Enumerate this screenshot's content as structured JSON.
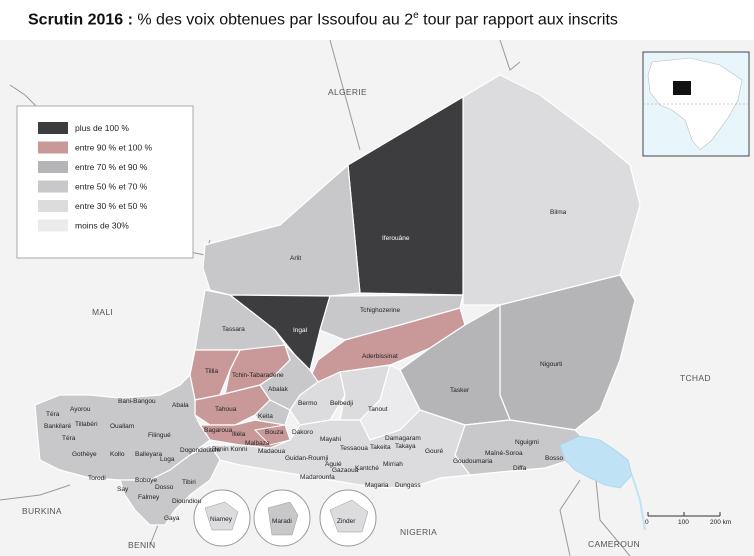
{
  "title": {
    "bold": "Scrutin 2016 :",
    "text": " % des voix obtenues par Issoufou au 2",
    "sup": "e",
    "rest": " tour par rapport aux inscrits"
  },
  "colors": {
    "c100": "#3d3d3f",
    "c90": "#c9999a",
    "c70": "#b5b5b7",
    "c50": "#c8c8ca",
    "c30": "#dcdcde",
    "c0": "#ebebed",
    "water": "#bfe3f5",
    "bg": "#f4f4f4"
  },
  "legend": [
    {
      "label": "plus de 100 %",
      "color": "#3d3d3f"
    },
    {
      "label": "entre 90 % et 100 %",
      "color": "#c9999a"
    },
    {
      "label": "entre 70 % et 90 %",
      "color": "#b5b5b7"
    },
    {
      "label": "entre 50 % et 70 %",
      "color": "#c8c8ca"
    },
    {
      "label": "entre 30 % et 50 %",
      "color": "#dcdcde"
    },
    {
      "label": "moins de 30%",
      "color": "#ebebed"
    }
  ],
  "countries": {
    "algeria": "ALGERIE",
    "mali": "MALI",
    "tchad": "TCHAD",
    "burkina": "BURKINA",
    "nigeria": "NIGERIA",
    "benin": "BENIN",
    "cameroun": "CAMEROUN"
  },
  "regions": {
    "iferouane": "Iferouâne",
    "bilma": "Bilma",
    "arlit": "Arlit",
    "tchighozerine": "Tchighozerine",
    "ingal": "Ingal",
    "tassara": "Tassara",
    "aderbissinat": "Aderbissinat",
    "ngourti": "Nigourti",
    "tillia": "Tillia",
    "tchin": "Tchin-Tabaradene",
    "abalak": "Abalak",
    "tasker": "Tasker",
    "tahoua": "Tahoua",
    "keita": "Keita",
    "bermo": "Bermo",
    "belbedji": "Belbedji",
    "tanout": "Tanout",
    "bani": "Bani-Bangou",
    "abala": "Abala",
    "tera": "Téra",
    "ayorou": "Ayorou",
    "bankilare": "Bankilaré",
    "tillaberi": "Tillabéri",
    "ouallam": "Ouallam",
    "filingue": "Filingué",
    "tera2": "Téra",
    "bagaroua": "Bagaroua",
    "illela": "Illéla",
    "bouza": "Bouza",
    "mayahi": "Mayahi",
    "dakoro": "Dakoro",
    "damagaram": "Damagaram",
    "takaya": "Takaya",
    "takeita": "Takeita",
    "tessaoua": "Tessaoua",
    "goure": "Gouré",
    "ngui": "Nguigmi",
    "maine": "Maïné-Soroa",
    "goudoumaria": "Goudoumaria",
    "bosso": "Bosso",
    "diffa": "Diffa",
    "gothheye": "Gothèye",
    "kollo": "Kollo",
    "balleyara": "Balleyara",
    "loga": "Loga",
    "dogondoutchi": "Dogondoutchi",
    "birnin": "Birnin Konni",
    "malbaza": "Malbaza",
    "madaoua": "Madaoua",
    "guidan": "Guidan-Roumji",
    "aguie": "Aguié",
    "mirriah": "Mirriah",
    "kantche": "Kantché",
    "gazaoua": "Gazaoua",
    "madarounfa": "Madarounfa",
    "magaria": "Magaria",
    "dungass": "Dungass",
    "torodi": "Torodi",
    "say": "Say",
    "boboye": "Boboye",
    "dosso": "Dosso",
    "tibiri": "Tibiri",
    "falmey": "Falmey",
    "dioundiou": "Dioundiou",
    "gaya": "Gaya"
  },
  "insets": {
    "niamey": "Niamey",
    "maradi": "Maradi",
    "zinder": "Zinder"
  },
  "scale": {
    "zero": "0",
    "mid": "100",
    "end": "200 km"
  }
}
